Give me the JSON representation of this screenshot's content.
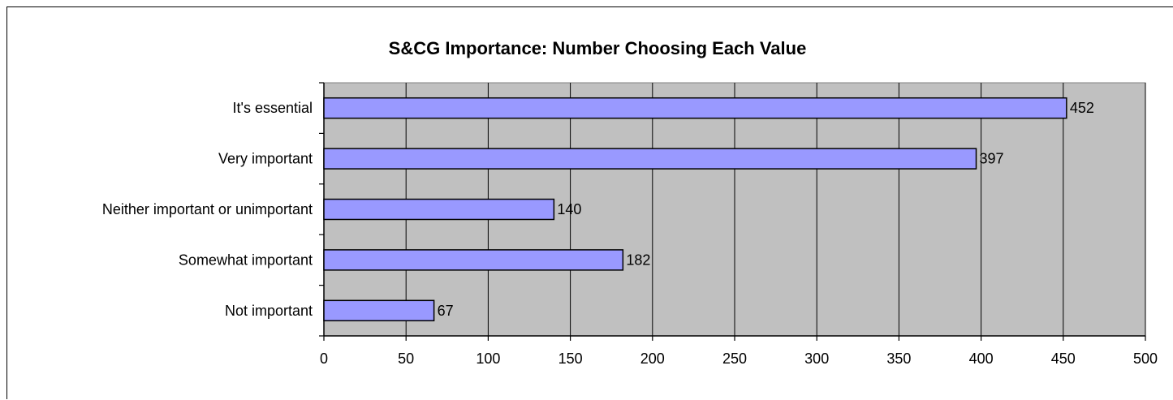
{
  "chart_data": {
    "type": "bar",
    "orientation": "horizontal",
    "title": "S&CG Importance: Number Choosing Each Value",
    "xlabel": "",
    "ylabel": "",
    "categories": [
      "It's essential",
      "Very important",
      "Neither important or unimportant",
      "Somewhat important",
      "Not important"
    ],
    "values": [
      452,
      397,
      140,
      182,
      67
    ],
    "data_labels": [
      "452",
      "397",
      "140",
      "182",
      "67"
    ],
    "xlim": [
      0,
      500
    ],
    "x_ticks": [
      0,
      50,
      100,
      150,
      200,
      250,
      300,
      350,
      400,
      450,
      500
    ],
    "x_tick_labels": [
      "0",
      "50",
      "100",
      "150",
      "200",
      "250",
      "300",
      "350",
      "400",
      "450",
      "500"
    ],
    "grid": true,
    "legend": "none",
    "colors": {
      "bar_fill": "#9999ff",
      "bar_stroke": "#000000",
      "plot_background": "#c0c0c0",
      "gridline": "#000000"
    }
  }
}
